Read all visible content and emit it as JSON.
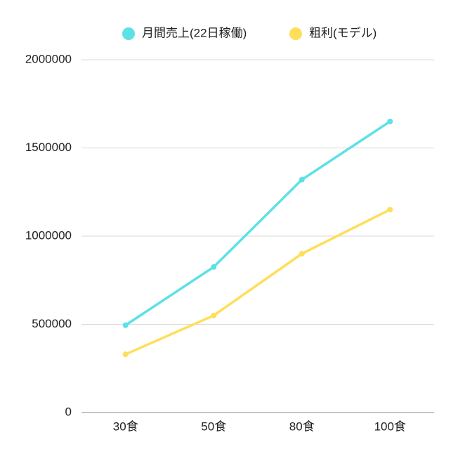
{
  "chart_data": {
    "type": "line",
    "categories": [
      "30食",
      "50食",
      "80食",
      "100食"
    ],
    "series": [
      {
        "name": "月間売上(22日稼働)",
        "color": "#5ce1e6",
        "values": [
          495000,
          825000,
          1320000,
          1650000
        ]
      },
      {
        "name": "粗利(モデル)",
        "color": "#ffde59",
        "values": [
          330000,
          550000,
          900000,
          1150000
        ]
      }
    ],
    "ylim": [
      0,
      2000000
    ],
    "yticks": [
      0,
      500000,
      1000000,
      1500000,
      2000000
    ],
    "grid": true,
    "legend": "top"
  }
}
